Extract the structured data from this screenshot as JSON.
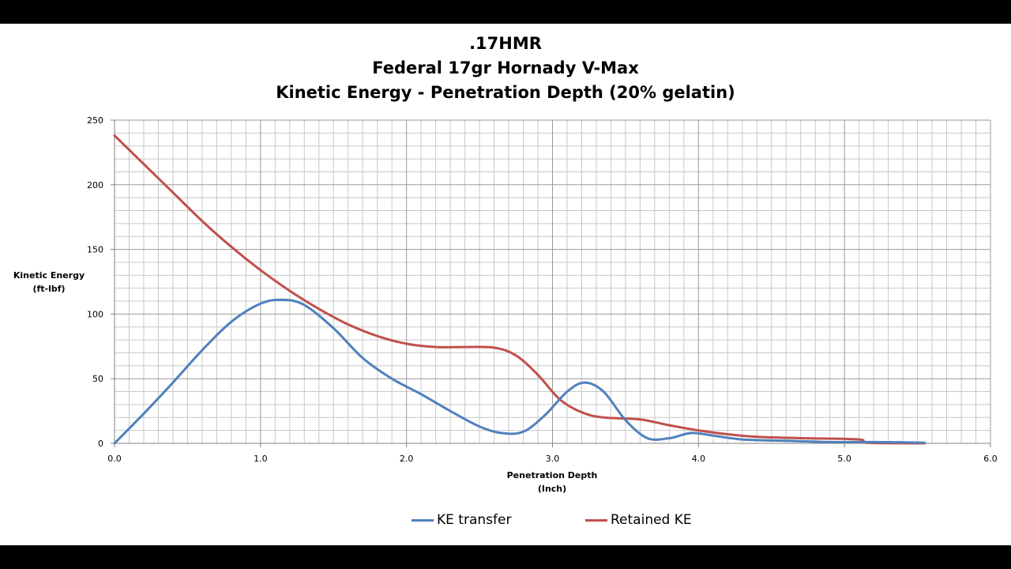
{
  "chart_data": {
    "type": "line",
    "title": [
      ".17HMR",
      "Federal 17gr Hornady V-Max",
      "Kinetic Energy - Penetration Depth (20% gelatin)"
    ],
    "xlabel": [
      "Penetration Depth",
      "(Inch)"
    ],
    "ylabel": [
      "Kinetic Energy",
      "(ft-lbf)"
    ],
    "xlim": [
      0,
      6
    ],
    "ylim": [
      0,
      250
    ],
    "xticks": [
      "0.0",
      "1.0",
      "2.0",
      "3.0",
      "4.0",
      "5.0",
      "6.0"
    ],
    "yticks": [
      "0",
      "50",
      "100",
      "150",
      "200",
      "250"
    ],
    "grid": true,
    "legend_position": "bottom",
    "series": [
      {
        "name": "KE transfer",
        "color": "#4f81bd",
        "x": [
          0.0,
          0.2,
          0.4,
          0.6,
          0.8,
          1.0,
          1.15,
          1.3,
          1.5,
          1.7,
          1.9,
          2.1,
          2.3,
          2.5,
          2.65,
          2.8,
          2.95,
          3.1,
          3.22,
          3.35,
          3.5,
          3.65,
          3.8,
          3.95,
          4.1,
          4.3,
          4.6,
          4.9,
          5.2,
          5.55
        ],
        "values": [
          0,
          23,
          47,
          72,
          94,
          108,
          111,
          107,
          89,
          66,
          50,
          38,
          25,
          13,
          8,
          9,
          22,
          40,
          47,
          40,
          18,
          4,
          4,
          8,
          6,
          3,
          2,
          1,
          1,
          0.5
        ]
      },
      {
        "name": "Retained KE",
        "color": "#c0504d",
        "x": [
          0.0,
          0.2,
          0.4,
          0.6,
          0.8,
          1.0,
          1.2,
          1.4,
          1.6,
          1.8,
          2.0,
          2.2,
          2.4,
          2.6,
          2.75,
          2.9,
          3.05,
          3.2,
          3.35,
          3.6,
          3.8,
          4.0,
          4.2,
          4.4,
          4.7,
          5.1,
          5.15,
          5.55
        ],
        "values": [
          238,
          216,
          194,
          172,
          152,
          134,
          118,
          104,
          92,
          83,
          77,
          74.5,
          74.5,
          74,
          68,
          53,
          34,
          24,
          20,
          18.5,
          14,
          10,
          7,
          5,
          4,
          3,
          0.5,
          0
        ]
      }
    ]
  }
}
